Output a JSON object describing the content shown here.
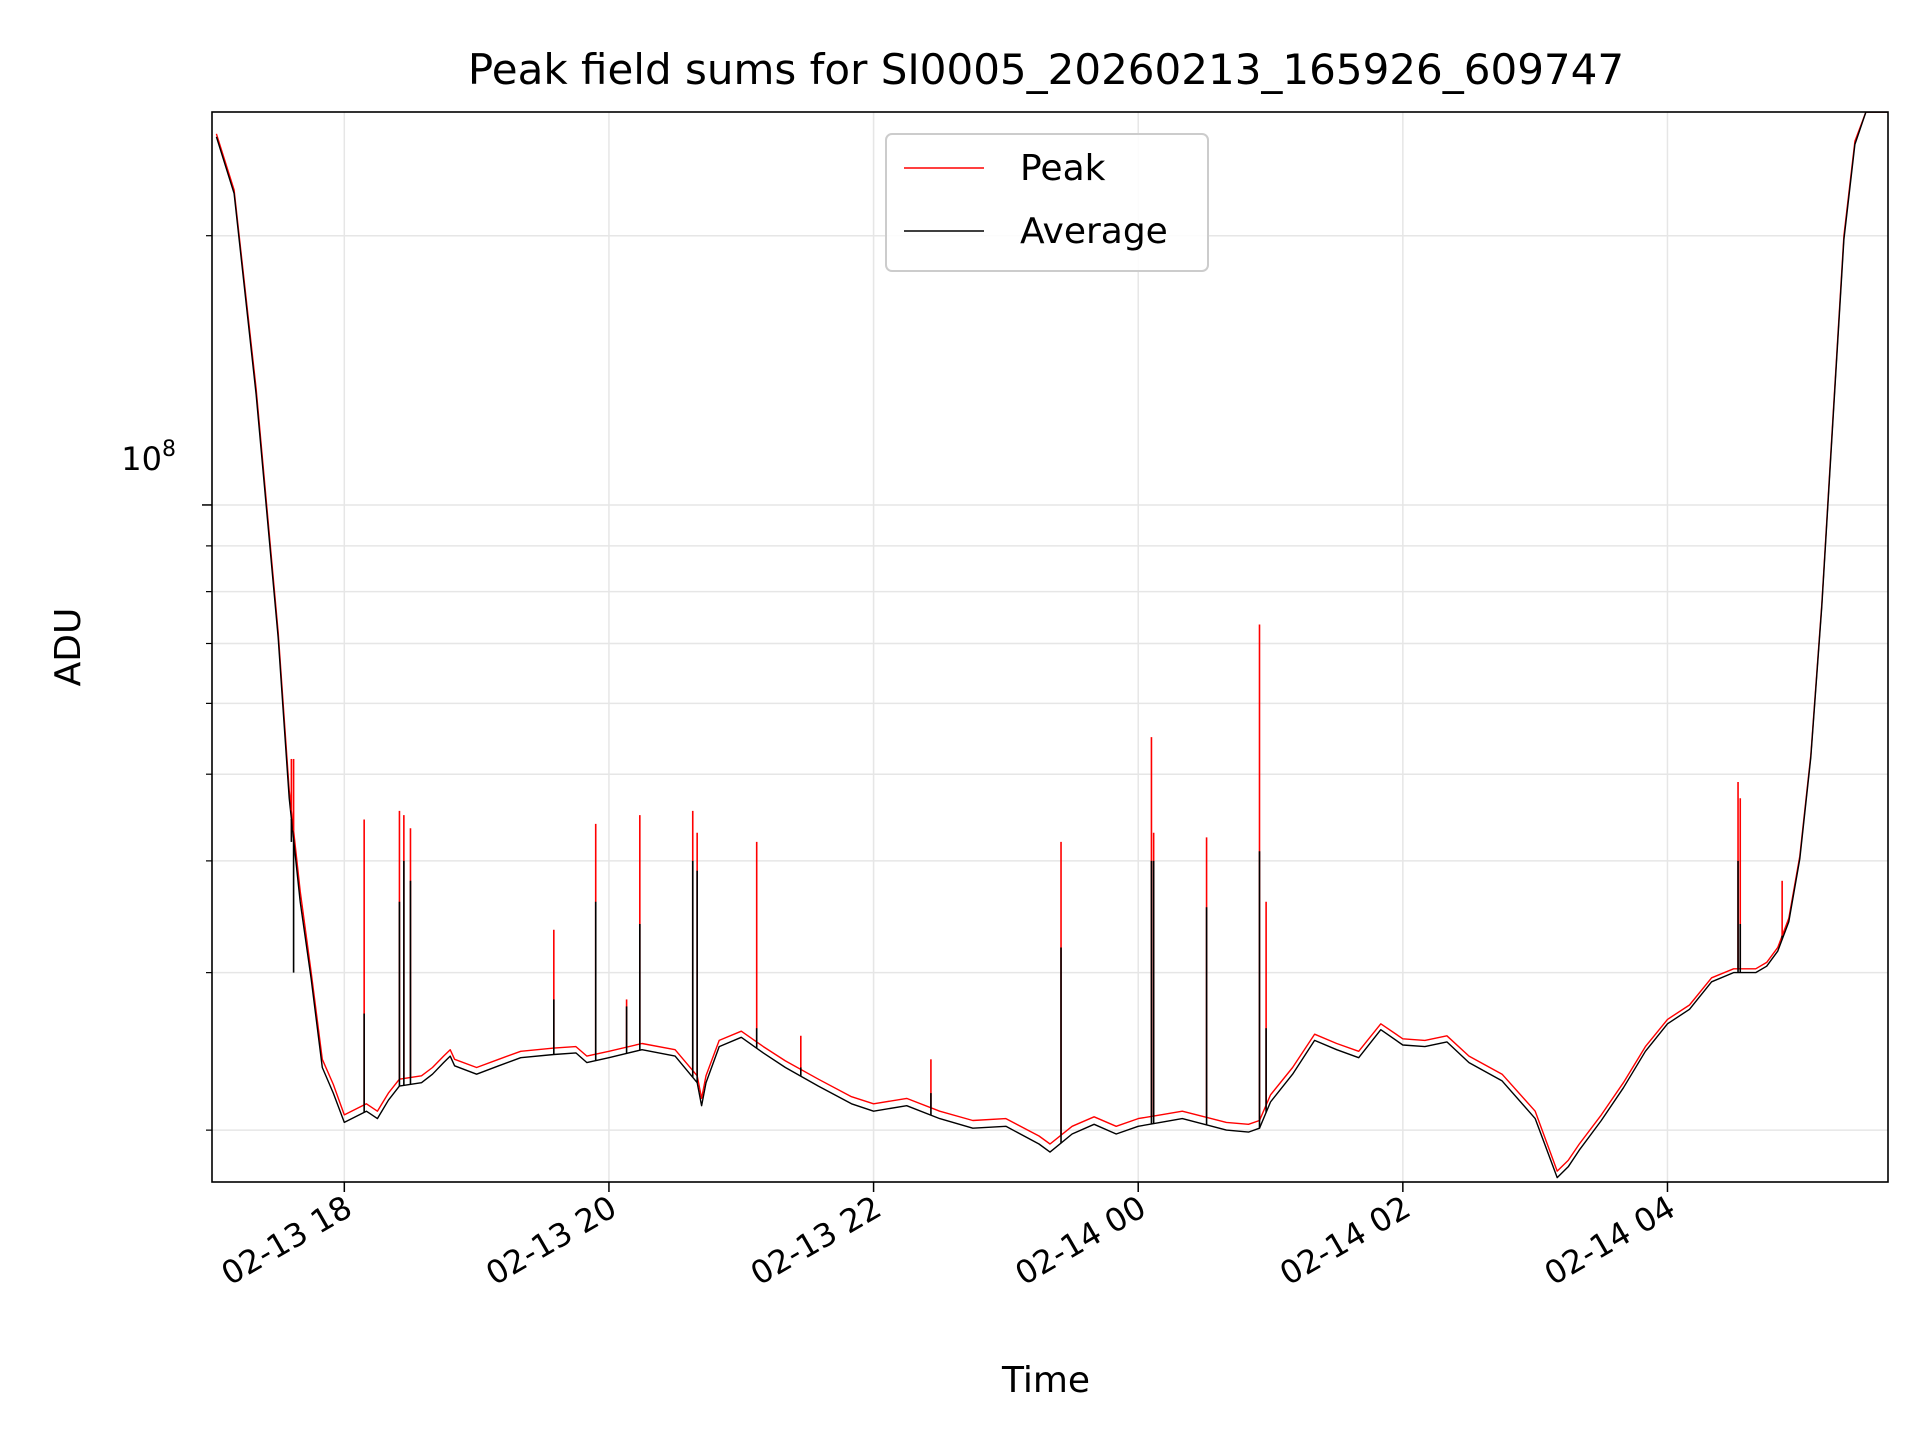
{
  "chart_data": {
    "type": "line",
    "title": "Peak field sums for SI0005_20260213_165926_609747",
    "xlabel": "Time",
    "ylabel": "ADU",
    "x_ticks": [
      "02-13 18",
      "02-13 20",
      "02-13 22",
      "02-14 00",
      "02-14 02",
      "02-14 04"
    ],
    "y_tick_major": {
      "base": "10",
      "exp": "8"
    },
    "y_scale": "log",
    "ylim": [
      17500000,
      275000000
    ],
    "xlim": [
      "2026-02-13 17:00",
      "2026-02-14 05:40"
    ],
    "grid": true,
    "legend": "top-center",
    "colors": {
      "peak": "#ff0000",
      "average": "#000000"
    },
    "series": [
      {
        "name": "Peak",
        "x": [
          "2026-02-13 17:02",
          "2026-02-13 17:10",
          "2026-02-13 17:20",
          "2026-02-13 17:30",
          "2026-02-13 17:35",
          "2026-02-13 17:40",
          "2026-02-13 17:45",
          "2026-02-13 17:50",
          "2026-02-13 17:55",
          "2026-02-13 18:00",
          "2026-02-13 18:10",
          "2026-02-13 18:15",
          "2026-02-13 18:20",
          "2026-02-13 18:25",
          "2026-02-13 18:35",
          "2026-02-13 18:40",
          "2026-02-13 18:45",
          "2026-02-13 18:48",
          "2026-02-13 18:50",
          "2026-02-13 19:00",
          "2026-02-13 19:10",
          "2026-02-13 19:20",
          "2026-02-13 19:35",
          "2026-02-13 19:45",
          "2026-02-13 19:50",
          "2026-02-13 20:00",
          "2026-02-13 20:15",
          "2026-02-13 20:30",
          "2026-02-13 20:40",
          "2026-02-13 20:42",
          "2026-02-13 20:44",
          "2026-02-13 20:50",
          "2026-02-13 21:00",
          "2026-02-13 21:10",
          "2026-02-13 21:20",
          "2026-02-13 21:35",
          "2026-02-13 21:50",
          "2026-02-13 22:00",
          "2026-02-13 22:15",
          "2026-02-13 22:30",
          "2026-02-13 22:45",
          "2026-02-13 23:00",
          "2026-02-13 23:15",
          "2026-02-13 23:20",
          "2026-02-13 23:30",
          "2026-02-13 23:40",
          "2026-02-13 23:50",
          "2026-02-14 00:00",
          "2026-02-14 00:10",
          "2026-02-14 00:20",
          "2026-02-14 00:30",
          "2026-02-14 00:40",
          "2026-02-14 00:50",
          "2026-02-14 00:55",
          "2026-02-14 01:00",
          "2026-02-14 01:10",
          "2026-02-14 01:20",
          "2026-02-14 01:30",
          "2026-02-14 01:40",
          "2026-02-14 01:50",
          "2026-02-14 02:00",
          "2026-02-14 02:10",
          "2026-02-14 02:20",
          "2026-02-14 02:30",
          "2026-02-14 02:45",
          "2026-02-14 03:00",
          "2026-02-14 03:10",
          "2026-02-14 03:15",
          "2026-02-14 03:20",
          "2026-02-14 03:30",
          "2026-02-14 03:40",
          "2026-02-14 03:50",
          "2026-02-14 04:00",
          "2026-02-14 04:10",
          "2026-02-14 04:20",
          "2026-02-14 04:30",
          "2026-02-14 04:40",
          "2026-02-14 04:45",
          "2026-02-14 04:50",
          "2026-02-14 04:55",
          "2026-02-14 05:00",
          "2026-02-14 05:05",
          "2026-02-14 05:10",
          "2026-02-14 05:15",
          "2026-02-14 05:20",
          "2026-02-14 05:25",
          "2026-02-14 05:30",
          "2026-02-14 05:40"
        ],
        "y": [
          260000000,
          225000000,
          135000000,
          72000000,
          48000000,
          37000000,
          30000000,
          24000000,
          22500000,
          20800000,
          21400000,
          21000000,
          22000000,
          22800000,
          23000000,
          23500000,
          24200000,
          24600000,
          24000000,
          23500000,
          24000000,
          24500000,
          24700000,
          24800000,
          24200000,
          24500000,
          25000000,
          24600000,
          23000000,
          21700000,
          23000000,
          25200000,
          25800000,
          24800000,
          23900000,
          22800000,
          21800000,
          21400000,
          21700000,
          21000000,
          20500000,
          20600000,
          19700000,
          19300000,
          20200000,
          20700000,
          20200000,
          20600000,
          20800000,
          21000000,
          20700000,
          20400000,
          20300000,
          20500000,
          21900000,
          23500000,
          25600000,
          25000000,
          24500000,
          26300000,
          25300000,
          25200000,
          25500000,
          24200000,
          23100000,
          21000000,
          18000000,
          18500000,
          19300000,
          20800000,
          22600000,
          24800000,
          26600000,
          27600000,
          29600000,
          30300000,
          30300000,
          30800000,
          32000000,
          34500000,
          40500000,
          52500000,
          77500000,
          125000000,
          200000000,
          255000000,
          275000000,
          275000000
        ]
      },
      {
        "name": "Average",
        "x": [
          "2026-02-13 17:02",
          "2026-02-13 17:10",
          "2026-02-13 17:20",
          "2026-02-13 17:30",
          "2026-02-13 17:35",
          "2026-02-13 17:40",
          "2026-02-13 17:45",
          "2026-02-13 17:50",
          "2026-02-13 17:55",
          "2026-02-13 18:00",
          "2026-02-13 18:10",
          "2026-02-13 18:15",
          "2026-02-13 18:20",
          "2026-02-13 18:25",
          "2026-02-13 18:35",
          "2026-02-13 18:40",
          "2026-02-13 18:45",
          "2026-02-13 18:48",
          "2026-02-13 18:50",
          "2026-02-13 19:00",
          "2026-02-13 19:10",
          "2026-02-13 19:20",
          "2026-02-13 19:35",
          "2026-02-13 19:45",
          "2026-02-13 19:50",
          "2026-02-13 20:00",
          "2026-02-13 20:15",
          "2026-02-13 20:30",
          "2026-02-13 20:40",
          "2026-02-13 20:42",
          "2026-02-13 20:44",
          "2026-02-13 20:50",
          "2026-02-13 21:00",
          "2026-02-13 21:10",
          "2026-02-13 21:20",
          "2026-02-13 21:35",
          "2026-02-13 21:50",
          "2026-02-13 22:00",
          "2026-02-13 22:15",
          "2026-02-13 22:30",
          "2026-02-13 22:45",
          "2026-02-13 23:00",
          "2026-02-13 23:15",
          "2026-02-13 23:20",
          "2026-02-13 23:30",
          "2026-02-13 23:40",
          "2026-02-13 23:50",
          "2026-02-14 00:00",
          "2026-02-14 00:10",
          "2026-02-14 00:20",
          "2026-02-14 00:30",
          "2026-02-14 00:40",
          "2026-02-14 00:50",
          "2026-02-14 00:55",
          "2026-02-14 01:00",
          "2026-02-14 01:10",
          "2026-02-14 01:20",
          "2026-02-14 01:30",
          "2026-02-14 01:40",
          "2026-02-14 01:50",
          "2026-02-14 02:00",
          "2026-02-14 02:10",
          "2026-02-14 02:20",
          "2026-02-14 02:30",
          "2026-02-14 02:45",
          "2026-02-14 03:00",
          "2026-02-14 03:10",
          "2026-02-14 03:15",
          "2026-02-14 03:20",
          "2026-02-14 03:30",
          "2026-02-14 03:40",
          "2026-02-14 03:50",
          "2026-02-14 04:00",
          "2026-02-14 04:10",
          "2026-02-14 04:20",
          "2026-02-14 04:30",
          "2026-02-14 04:40",
          "2026-02-14 04:45",
          "2026-02-14 04:50",
          "2026-02-14 04:55",
          "2026-02-14 05:00",
          "2026-02-14 05:05",
          "2026-02-14 05:10",
          "2026-02-14 05:15",
          "2026-02-14 05:20",
          "2026-02-14 05:25",
          "2026-02-14 05:30",
          "2026-02-14 05:40"
        ],
        "y": [
          258000000,
          223000000,
          133000000,
          71000000,
          47000000,
          36000000,
          29500000,
          23500000,
          22000000,
          20400000,
          21000000,
          20600000,
          21600000,
          22400000,
          22600000,
          23100000,
          23800000,
          24200000,
          23600000,
          23100000,
          23600000,
          24100000,
          24300000,
          24400000,
          23800000,
          24100000,
          24600000,
          24200000,
          22600000,
          21300000,
          22600000,
          24800000,
          25400000,
          24400000,
          23500000,
          22400000,
          21400000,
          21000000,
          21300000,
          20600000,
          20100000,
          20200000,
          19300000,
          18900000,
          19800000,
          20300000,
          19800000,
          20200000,
          20400000,
          20600000,
          20300000,
          20000000,
          19900000,
          20100000,
          21500000,
          23100000,
          25200000,
          24600000,
          24100000,
          25900000,
          24900000,
          24800000,
          25100000,
          23800000,
          22700000,
          20600000,
          17700000,
          18200000,
          19000000,
          20500000,
          22300000,
          24500000,
          26300000,
          27300000,
          29300000,
          30000000,
          30000000,
          30500000,
          31700000,
          34200000,
          40200000,
          52200000,
          77000000,
          124000000,
          198000000,
          253000000,
          275000000,
          275000000
        ]
      }
    ],
    "spikes": [
      {
        "x": "2026-02-13 17:36",
        "peak": 52000000,
        "average": 42000000
      },
      {
        "x": "2026-02-13 17:37",
        "peak": 52000000,
        "average": 30000000
      },
      {
        "x": "2026-02-13 18:09",
        "peak": 44500000,
        "average": 27000000
      },
      {
        "x": "2026-02-13 18:25",
        "peak": 45500000,
        "average": 36000000
      },
      {
        "x": "2026-02-13 18:27",
        "peak": 45000000,
        "average": 40000000
      },
      {
        "x": "2026-02-13 18:30",
        "peak": 43500000,
        "average": 38000000
      },
      {
        "x": "2026-02-13 19:35",
        "peak": 33500000,
        "average": 28000000
      },
      {
        "x": "2026-02-13 19:54",
        "peak": 44000000,
        "average": 36000000
      },
      {
        "x": "2026-02-13 20:08",
        "peak": 28000000,
        "average": 27500000
      },
      {
        "x": "2026-02-13 20:14",
        "peak": 45000000,
        "average": 34000000
      },
      {
        "x": "2026-02-13 20:38",
        "peak": 45500000,
        "average": 40000000
      },
      {
        "x": "2026-02-13 20:40",
        "peak": 43000000,
        "average": 39000000
      },
      {
        "x": "2026-02-13 21:07",
        "peak": 42000000,
        "average": 26000000
      },
      {
        "x": "2026-02-13 21:27",
        "peak": 25500000,
        "average": 23500000
      },
      {
        "x": "2026-02-13 22:26",
        "peak": 24000000,
        "average": 22000000
      },
      {
        "x": "2026-02-13 23:25",
        "peak": 42000000,
        "average": 32000000
      },
      {
        "x": "2026-02-14 00:06",
        "peak": 55000000,
        "average": 40000000
      },
      {
        "x": "2026-02-14 00:07",
        "peak": 43000000,
        "average": 40000000
      },
      {
        "x": "2026-02-14 00:31",
        "peak": 42500000,
        "average": 35500000
      },
      {
        "x": "2026-02-14 00:55",
        "peak": 73500000,
        "average": 41000000
      },
      {
        "x": "2026-02-14 00:58",
        "peak": 36000000,
        "average": 26000000
      },
      {
        "x": "2026-02-14 04:32",
        "peak": 49000000,
        "average": 40000000
      },
      {
        "x": "2026-02-14 04:33",
        "peak": 47000000,
        "average": 34000000
      },
      {
        "x": "2026-02-14 04:52",
        "peak": 38000000,
        "average": 33000000
      }
    ]
  }
}
